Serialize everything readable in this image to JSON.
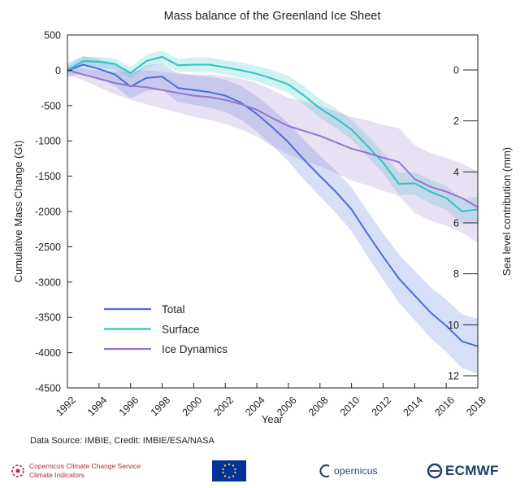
{
  "chart_data": {
    "type": "line",
    "title": "Mass balance of the Greenland Ice Sheet",
    "xlabel": "Year",
    "ylabel": "Cumulative Mass Change (Gt)",
    "y2label": "Sea level contribution (mm)",
    "xlim": [
      1992,
      2018
    ],
    "ylim": [
      -4500,
      500
    ],
    "y2lim": [
      -0.0,
      12
    ],
    "xticks": [
      "1992",
      "1994",
      "1996",
      "1998",
      "2000",
      "2002",
      "2004",
      "2006",
      "2008",
      "2010",
      "2012",
      "2014",
      "2016",
      "2018"
    ],
    "yticks": [
      "500",
      "0",
      "-500",
      "-1000",
      "-1500",
      "-2000",
      "-2500",
      "-3000",
      "-3500",
      "-4000",
      "-4500"
    ],
    "y2ticks": [
      "0",
      "2",
      "4",
      "6",
      "8",
      "10",
      "12"
    ],
    "legend_position": "lower-left",
    "grid": false,
    "series": [
      {
        "name": "Total",
        "color": "#4a6ddb",
        "x": [
          1992,
          1993,
          1994,
          1995,
          1996,
          1997,
          1998,
          1999,
          2000,
          2001,
          2002,
          2003,
          2004,
          2005,
          2006,
          2007,
          2008,
          2009,
          2010,
          2011,
          2012,
          2013,
          2014,
          2015,
          2016,
          2017,
          2018
        ],
        "values": [
          0,
          80,
          20,
          -60,
          -230,
          -110,
          -90,
          -250,
          -280,
          -310,
          -360,
          -460,
          -620,
          -810,
          -1020,
          -1270,
          -1500,
          -1720,
          -1970,
          -2310,
          -2640,
          -2950,
          -3190,
          -3430,
          -3620,
          -3840,
          -3910
        ],
        "band": [
          100,
          120,
          140,
          160,
          170,
          180,
          190,
          200,
          210,
          220,
          230,
          240,
          250,
          260,
          270,
          280,
          290,
          300,
          310,
          320,
          330,
          340,
          350,
          360,
          370,
          380,
          390
        ]
      },
      {
        "name": "Surface",
        "color": "#2cc4c4",
        "x": [
          1992,
          1993,
          1994,
          1995,
          1996,
          1997,
          1998,
          1999,
          2000,
          2001,
          2002,
          2003,
          2004,
          2005,
          2006,
          2007,
          2008,
          2009,
          2010,
          2011,
          2012,
          2013,
          2014,
          2015,
          2016,
          2017,
          2018
        ],
        "values": [
          0,
          130,
          120,
          90,
          -40,
          130,
          190,
          70,
          80,
          80,
          40,
          0,
          -50,
          -120,
          -200,
          -360,
          -540,
          -680,
          -840,
          -1070,
          -1310,
          -1610,
          -1600,
          -1720,
          -1810,
          -2000,
          -1970
        ],
        "band": [
          50,
          60,
          70,
          80,
          80,
          90,
          90,
          90,
          100,
          100,
          100,
          110,
          110,
          120,
          120,
          130,
          130,
          140,
          140,
          150,
          150,
          160,
          160,
          170,
          170,
          180,
          180
        ]
      },
      {
        "name": "Ice Dynamics",
        "color": "#9575cd",
        "x": [
          1992,
          1993,
          1994,
          1995,
          1996,
          1997,
          1998,
          1999,
          2000,
          2001,
          2002,
          2003,
          2004,
          2005,
          2006,
          2007,
          2008,
          2009,
          2010,
          2011,
          2012,
          2013,
          2014,
          2015,
          2016,
          2017,
          2018
        ],
        "values": [
          0,
          -60,
          -120,
          -180,
          -220,
          -240,
          -280,
          -320,
          -360,
          -380,
          -420,
          -480,
          -560,
          -680,
          -790,
          -860,
          -930,
          -1020,
          -1110,
          -1170,
          -1240,
          -1300,
          -1540,
          -1650,
          -1720,
          -1810,
          -1940
        ],
        "band": [
          60,
          80,
          120,
          160,
          200,
          240,
          260,
          280,
          300,
          320,
          340,
          360,
          380,
          400,
          400,
          420,
          430,
          440,
          450,
          460,
          470,
          480,
          480,
          480,
          480,
          490,
          500
        ]
      }
    ]
  },
  "footer": {
    "source": "Data Source: IMBIE, Credit: IMBIE/ESA/NASA",
    "c3s_line1": "Copernicus Climate Change Service",
    "c3s_line2": "Climate Indicators",
    "copernicus": "opernicus",
    "ecmwf": "ECMWF",
    "colors": {
      "c3s": "#b02a37",
      "eu_blue": "#003399",
      "eu_star": "#ffcc00",
      "navy": "#1d3f6e"
    }
  }
}
